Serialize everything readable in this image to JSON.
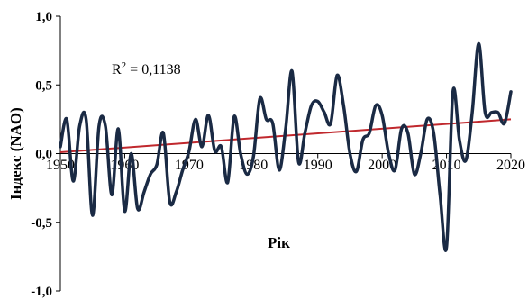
{
  "chart_data": {
    "type": "line",
    "title": "",
    "xlabel": "Рік",
    "ylabel": "Індекс (NAO)",
    "xlim": [
      1950,
      2020
    ],
    "ylim": [
      -1.0,
      1.0
    ],
    "x_ticks": [
      "1950",
      "1960",
      "1970",
      "1980",
      "1990",
      "2000",
      "2010",
      "2020"
    ],
    "y_ticks": [
      "1,0",
      "0,5",
      "0,0",
      "-0,5",
      "-1,0"
    ],
    "grid": false,
    "legend": "none",
    "annotation": {
      "text_base": "R",
      "text_sup": "2",
      "text_rest": " = 0,1138"
    },
    "series": [
      {
        "color": "#1a2a44",
        "smooth": true,
        "x": [
          1950,
          1951,
          1952,
          1953,
          1954,
          1955,
          1956,
          1957,
          1958,
          1959,
          1960,
          1961,
          1962,
          1963,
          1964,
          1965,
          1966,
          1967,
          1968,
          1969,
          1970,
          1971,
          1972,
          1973,
          1974,
          1975,
          1976,
          1977,
          1978,
          1979,
          1980,
          1981,
          1982,
          1983,
          1984,
          1985,
          1986,
          1987,
          1988,
          1989,
          1990,
          1991,
          1992,
          1993,
          1994,
          1995,
          1996,
          1997,
          1998,
          1999,
          2000,
          2001,
          2002,
          2003,
          2004,
          2005,
          2006,
          2007,
          2008,
          2009,
          2010,
          2011,
          2012,
          2013,
          2014,
          2015,
          2016,
          2017,
          2018,
          2019,
          2020
        ],
        "values": [
          0.05,
          0.25,
          -0.2,
          0.2,
          0.25,
          -0.45,
          0.2,
          0.2,
          -0.3,
          0.18,
          -0.42,
          0.0,
          -0.4,
          -0.28,
          -0.15,
          -0.08,
          0.15,
          -0.35,
          -0.28,
          -0.12,
          0.02,
          0.25,
          0.05,
          0.28,
          0.02,
          0.05,
          -0.21,
          0.27,
          0.0,
          -0.15,
          -0.02,
          0.4,
          0.25,
          0.22,
          -0.12,
          0.18,
          0.6,
          -0.06,
          0.15,
          0.35,
          0.38,
          0.3,
          0.22,
          0.57,
          0.35,
          0.0,
          -0.13,
          0.1,
          0.15,
          0.35,
          0.28,
          0.0,
          -0.12,
          0.18,
          0.15,
          -0.15,
          0.0,
          0.25,
          0.15,
          -0.3,
          -0.68,
          0.45,
          0.1,
          -0.05,
          0.3,
          0.8,
          0.3,
          0.3,
          0.3,
          0.22,
          0.45
        ]
      },
      {
        "name_text": "",
        "color": "#c0282d",
        "trend": true,
        "x": [
          1950,
          2020
        ],
        "values": [
          0.01,
          0.25
        ]
      }
    ]
  }
}
